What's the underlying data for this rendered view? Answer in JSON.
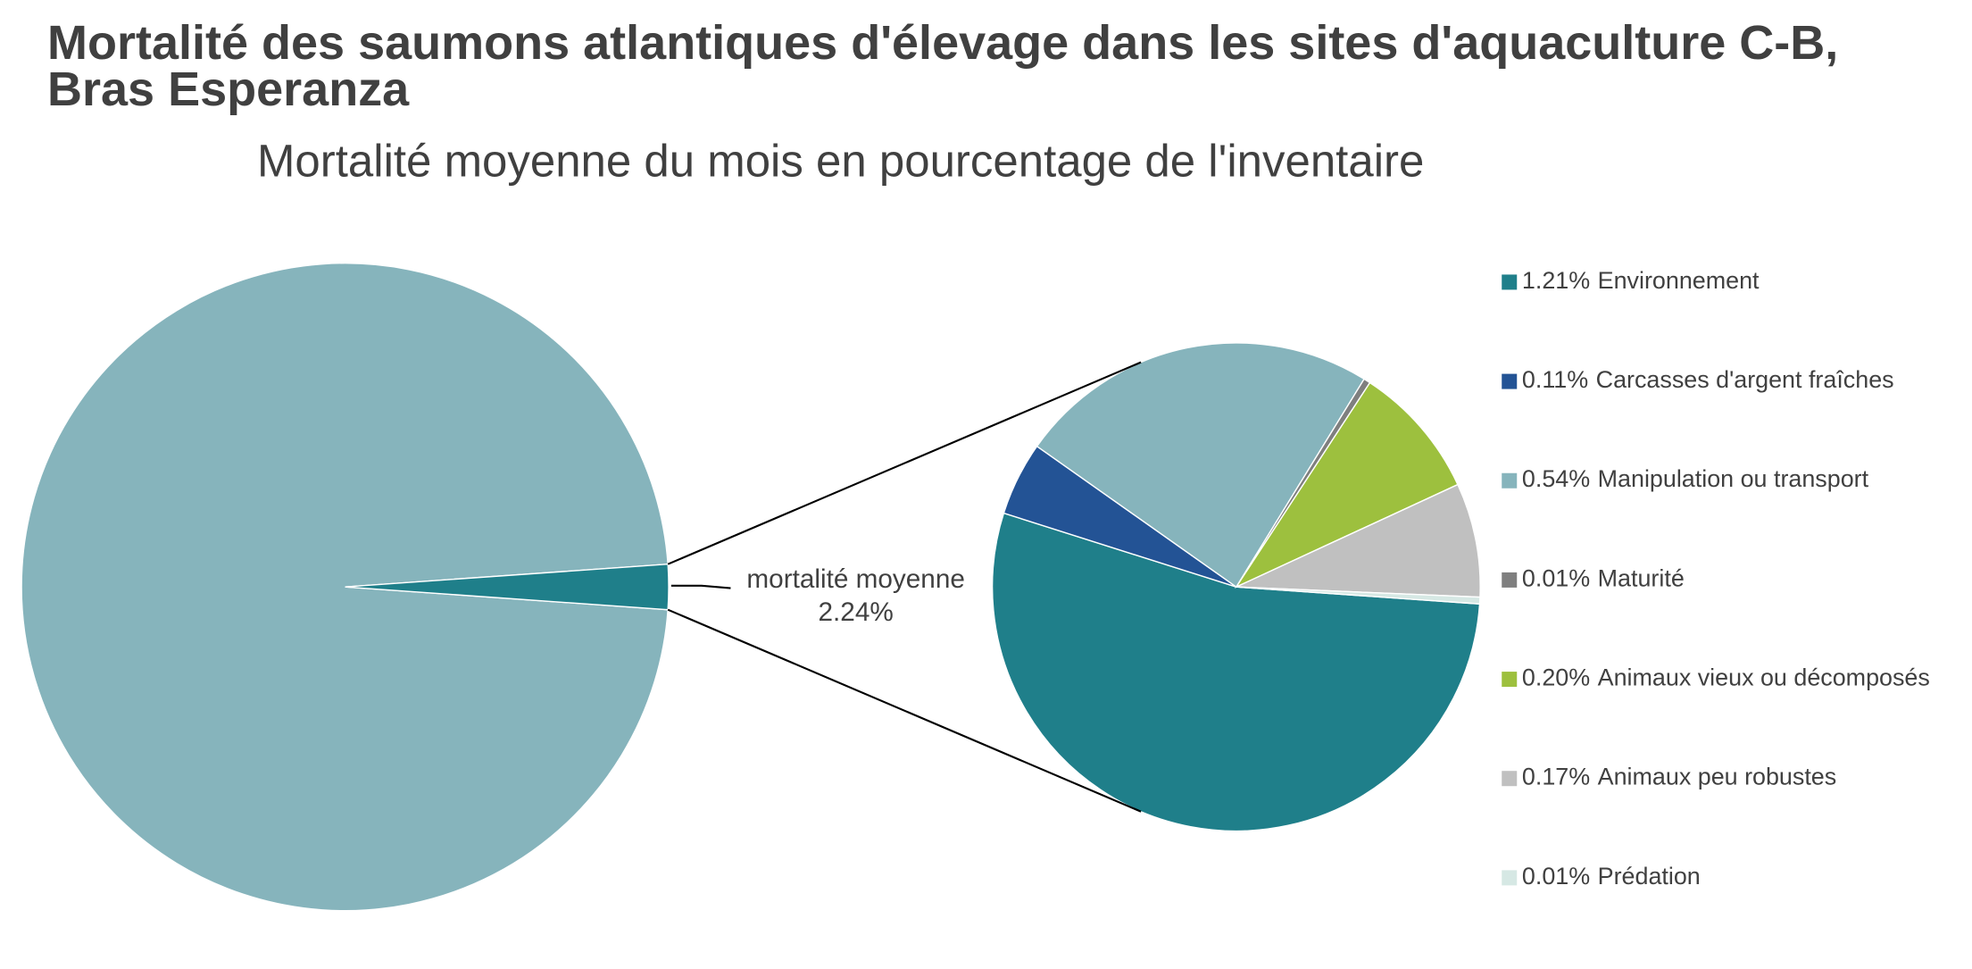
{
  "chart_data": {
    "type": "pie-of-pie",
    "title": "Mortalité des saumons atlantiques d'élevage dans les sites d'aquaculture C-B, Bras Esperanza",
    "subtitle": "Mortalité moyenne du mois en pourcentage de l'inventaire",
    "main": {
      "categories": [
        null,
        "mortalité moyenne"
      ],
      "values": [
        97.76,
        2.24
      ],
      "value_labels": [
        null,
        "2.24%"
      ],
      "colors": [
        "#86b4bc",
        "#1f7f8a"
      ]
    },
    "detail": {
      "categories": [
        "Environnement",
        "Carcasses d'argent fraîches",
        "Manipulation ou transport",
        "Maturité",
        "Animaux vieux ou décomposés",
        "Animaux peu robustes",
        "Prédation"
      ],
      "values": [
        1.21,
        0.11,
        0.54,
        0.01,
        0.2,
        0.17,
        0.01
      ],
      "value_labels": [
        "1.21%",
        "0.11%",
        "0.54%",
        "0.01%",
        "0.20%",
        "0.17%",
        "0.01%"
      ],
      "colors": [
        "#1f7f8a",
        "#235395",
        "#86b4bc",
        "#7f7f7f",
        "#9dc03e",
        "#c0c0c0",
        "#d6e8e4"
      ]
    },
    "legend": "right"
  }
}
